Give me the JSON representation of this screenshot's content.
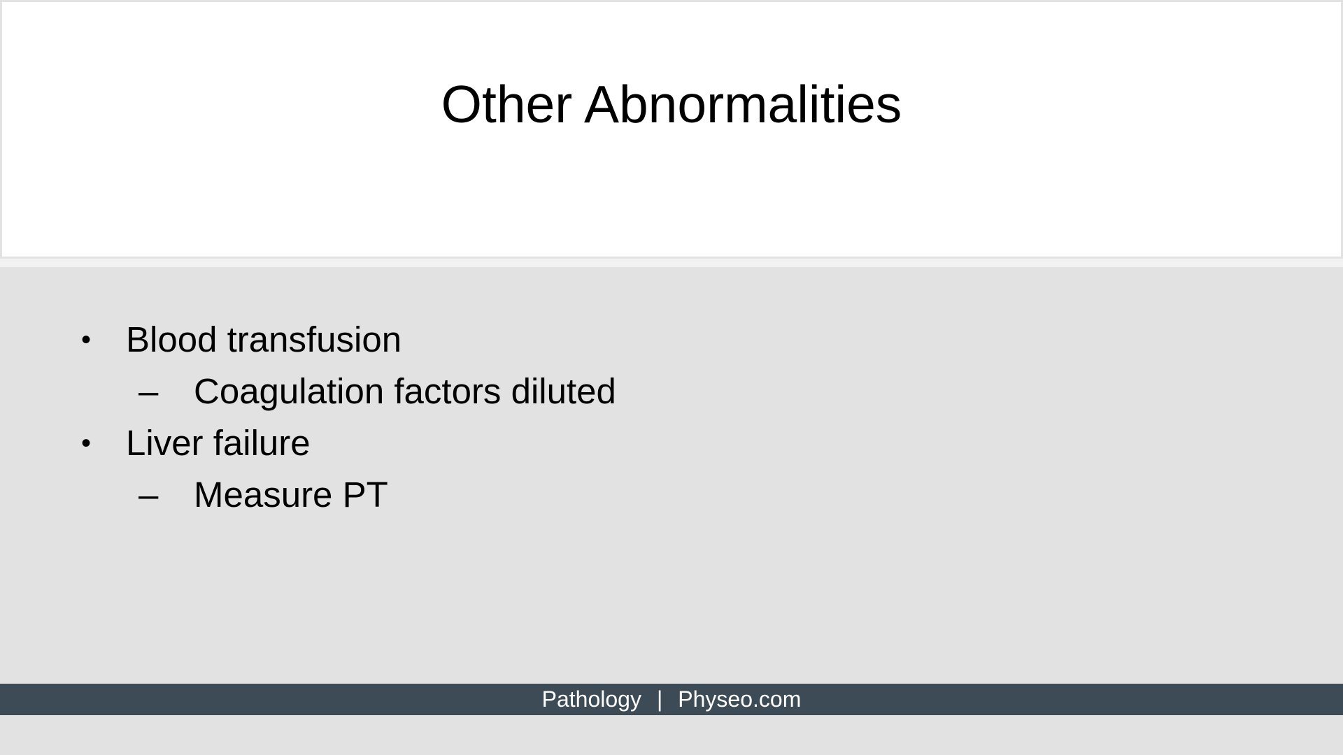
{
  "slide": {
    "title": "Other Abnormalities",
    "bullets": [
      {
        "marker": "•",
        "text": "Blood transfusion",
        "sub": {
          "marker": "–",
          "text": "Coagulation factors diluted"
        }
      },
      {
        "marker": "•",
        "text": "Liver failure",
        "sub": {
          "marker": "–",
          "text": "Measure PT"
        }
      }
    ]
  },
  "footer": {
    "left": "Pathology",
    "separator": "|",
    "right": "Physeo.com"
  },
  "colors": {
    "background": "#e2e2e2",
    "title_panel": "#ffffff",
    "footer_bar": "#3d4b57",
    "footer_text": "#ffffff"
  }
}
